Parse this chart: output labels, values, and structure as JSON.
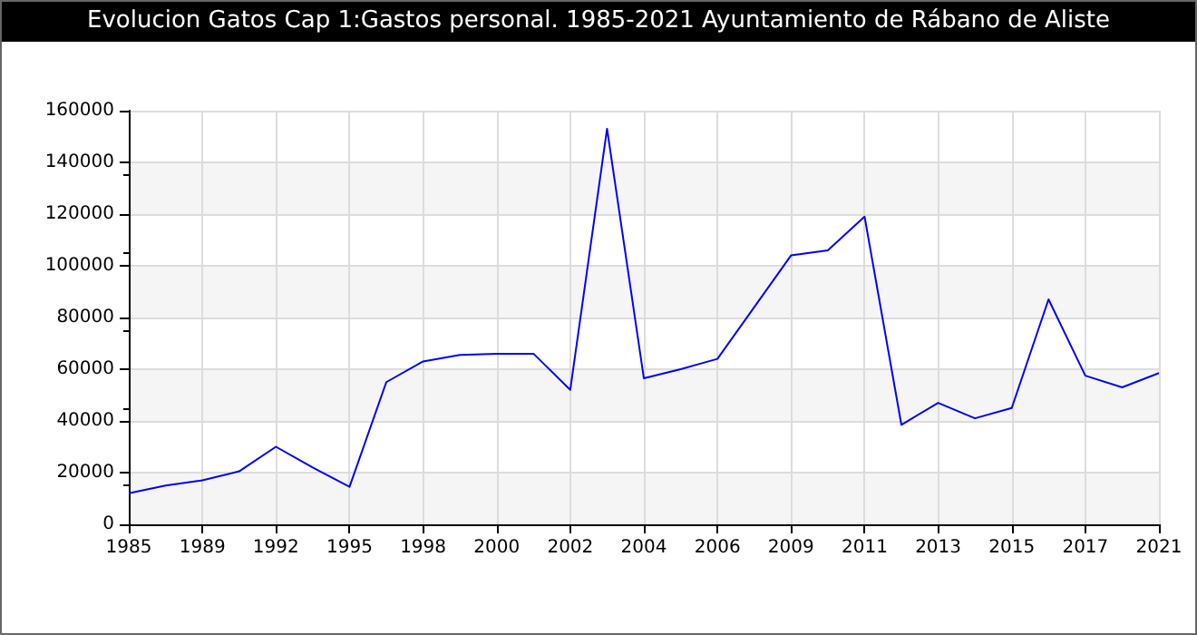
{
  "chart_data": {
    "type": "line",
    "title": "Evolucion Gatos Cap 1:Gastos personal. 1985-2021 Ayuntamiento de Rábano de Aliste",
    "categories": [
      "1985",
      null,
      "1989",
      null,
      "1992",
      null,
      "1995",
      null,
      "1998",
      null,
      "2000",
      null,
      "2002",
      null,
      "2004",
      null,
      "2006",
      null,
      "2009",
      null,
      "2011",
      null,
      "2013",
      null,
      "2015",
      null,
      "2017",
      null,
      "2021"
    ],
    "series": [
      {
        "color": "#0000ff",
        "values": [
          12000,
          15000,
          17000,
          20500,
          30000,
          22000,
          14500,
          55000,
          63000,
          65500,
          66000,
          66000,
          52000,
          153000,
          56500,
          60000,
          64000,
          84000,
          104000,
          106000,
          119000,
          38500,
          47000,
          41000,
          45000,
          87000,
          57500,
          53000,
          58500
        ]
      }
    ],
    "ylim": [
      0,
      160000
    ],
    "yticks": [
      0,
      20000,
      40000,
      60000,
      80000,
      100000,
      120000,
      140000,
      160000
    ],
    "grid": true,
    "marker": "none",
    "line_style": "solid"
  }
}
